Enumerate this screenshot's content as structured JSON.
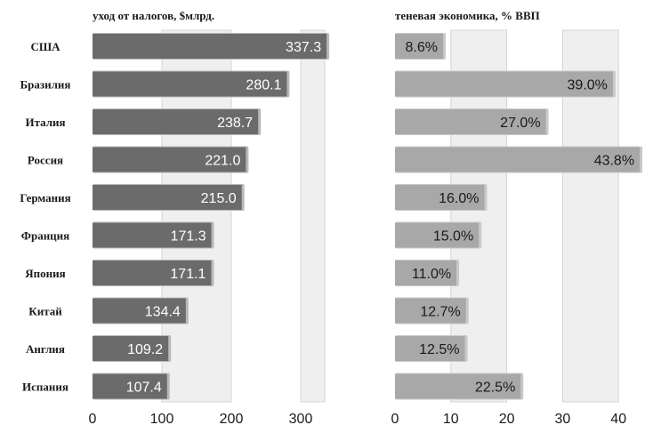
{
  "chart_data": [
    {
      "type": "bar",
      "orientation": "horizontal",
      "title": "уход от налогов, $млрд.",
      "categories": [
        "США",
        "Бразилия",
        "Италия",
        "Россия",
        "Германия",
        "Франция",
        "Япония",
        "Китай",
        "Англия",
        "Испания"
      ],
      "values": [
        337.3,
        280.1,
        238.7,
        221.0,
        215.0,
        171.3,
        171.1,
        134.4,
        109.2,
        107.4
      ],
      "labels": [
        "337.3",
        "280.1",
        "238.7",
        "221.0",
        "215.0",
        "171.3",
        "171.1",
        "134.4",
        "109.2",
        "107.4"
      ],
      "xlim": [
        0,
        350
      ],
      "xticks": [
        0,
        100,
        200,
        300
      ],
      "xtick_labels": [
        "0",
        "100",
        "200",
        "300"
      ],
      "grid": "alternating vertical bands",
      "bar_color": "#6b6b6b"
    },
    {
      "type": "bar",
      "orientation": "horizontal",
      "title": "теневая экономика, % ВВП",
      "categories": [
        "США",
        "Бразилия",
        "Италия",
        "Россия",
        "Германия",
        "Франция",
        "Япония",
        "Китай",
        "Англия",
        "Испания"
      ],
      "values": [
        8.6,
        39.0,
        27.0,
        43.8,
        16.0,
        15.0,
        11.0,
        12.7,
        12.5,
        22.5
      ],
      "labels": [
        "8.6%",
        "39.0%",
        "27.0%",
        "43.8%",
        "16.0%",
        "15.0%",
        "11.0%",
        "12.7%",
        "12.5%",
        "22.5%"
      ],
      "xlim": [
        0,
        47
      ],
      "xticks": [
        0,
        10,
        20,
        30,
        40
      ],
      "xtick_labels": [
        "0",
        "10",
        "20",
        "30",
        "40"
      ],
      "grid": "alternating vertical bands",
      "bar_color": "#a8a8a8"
    }
  ],
  "colors": {
    "band": "#efefef",
    "band_edge": "#d4d4d4",
    "left_bar": "#6b6b6b",
    "left_bar_shadow": "#b9b9b9",
    "left_label": "#ffffff",
    "right_bar": "#a8a8a8",
    "right_bar_shadow": "#c9c9c9",
    "right_label": "#1a1a1a",
    "text": "#1a1a1a"
  }
}
